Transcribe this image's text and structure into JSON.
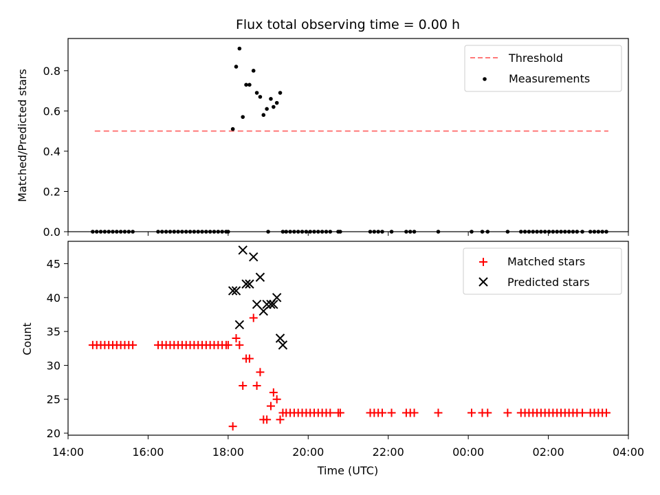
{
  "chart_data": [
    {
      "type": "scatter",
      "title": "Flux total observing time = 0.00 h",
      "xlabel": "",
      "ylabel": "Matched/Predicted stars",
      "xlim": [
        "14:00",
        "04:00"
      ],
      "ylim": [
        0.0,
        0.96
      ],
      "yticks": [
        0.0,
        0.2,
        0.4,
        0.6,
        0.8
      ],
      "yticklabels": [
        "0.0",
        "0.2",
        "0.4",
        "0.6",
        "0.8"
      ],
      "legend_position": "top-right",
      "grid": false,
      "lines": [
        {
          "name": "Threshold",
          "color": "#ff7777",
          "dash": "dashed",
          "x": [
            "14:40",
            "03:30"
          ],
          "y": [
            0.5,
            0.5
          ]
        }
      ],
      "series": [
        {
          "name": "Measurements",
          "color": "#000000",
          "marker": "dot",
          "x": [
            "18:07",
            "18:12",
            "18:17",
            "18:22",
            "18:27",
            "18:32",
            "18:38",
            "18:43",
            "18:48",
            "18:53",
            "18:58",
            "19:04",
            "19:08",
            "19:13",
            "19:18",
            "19:22"
          ],
          "y": [
            0.51,
            0.82,
            0.91,
            0.57,
            0.73,
            0.73,
            0.8,
            0.69,
            0.67,
            0.58,
            0.61,
            0.66,
            0.62,
            0.64,
            0.69,
            0.0
          ]
        },
        {
          "name": "",
          "color": "#000000",
          "marker": "dot",
          "x": [
            "14:37",
            "14:43",
            "14:49",
            "14:55",
            "15:01",
            "15:07",
            "15:13",
            "15:19",
            "15:25",
            "15:31",
            "15:37",
            "16:15",
            "16:21",
            "16:27",
            "16:33",
            "16:39",
            "16:45",
            "16:51",
            "16:57",
            "17:03",
            "17:09",
            "17:15",
            "17:21",
            "17:27",
            "17:33",
            "17:39",
            "17:45",
            "17:51",
            "17:57",
            "18:00",
            "19:00",
            "19:27",
            "19:33",
            "19:39",
            "19:45",
            "19:51",
            "19:57",
            "20:03",
            "20:09",
            "20:15",
            "20:21",
            "20:27",
            "20:33",
            "20:45",
            "20:48",
            "21:33",
            "21:39",
            "21:45",
            "21:51",
            "22:05",
            "22:27",
            "22:33",
            "22:39",
            "23:15",
            "00:05",
            "00:21",
            "00:29",
            "00:59",
            "01:19",
            "01:25",
            "01:31",
            "01:37",
            "01:43",
            "01:49",
            "01:55",
            "02:01",
            "02:07",
            "02:13",
            "02:19",
            "02:25",
            "02:31",
            "02:37",
            "02:43",
            "02:51",
            "03:03",
            "03:09",
            "03:15",
            "03:21",
            "03:27"
          ],
          "y": [
            0,
            0,
            0,
            0,
            0,
            0,
            0,
            0,
            0,
            0,
            0,
            0,
            0,
            0,
            0,
            0,
            0,
            0,
            0,
            0,
            0,
            0,
            0,
            0,
            0,
            0,
            0,
            0,
            0,
            0,
            0,
            0,
            0,
            0,
            0,
            0,
            0,
            0,
            0,
            0,
            0,
            0,
            0,
            0,
            0,
            0,
            0,
            0,
            0,
            0,
            0,
            0,
            0,
            0,
            0,
            0,
            0,
            0,
            0,
            0,
            0,
            0,
            0,
            0,
            0,
            0,
            0,
            0,
            0,
            0,
            0,
            0,
            0,
            0,
            0,
            0,
            0,
            0,
            0
          ]
        }
      ]
    },
    {
      "type": "scatter",
      "title": "",
      "xlabel": "Time (UTC)",
      "ylabel": "Count",
      "xlim": [
        "14:00",
        "04:00"
      ],
      "ylim": [
        19.7,
        48.3
      ],
      "yticks": [
        20,
        25,
        30,
        35,
        40,
        45
      ],
      "yticklabels": [
        "20",
        "25",
        "30",
        "35",
        "40",
        "45"
      ],
      "xticks": [
        "14:00",
        "16:00",
        "18:00",
        "20:00",
        "22:00",
        "00:00",
        "02:00",
        "04:00"
      ],
      "legend_position": "top-right",
      "grid": false,
      "series": [
        {
          "name": "Matched stars",
          "color": "#ff0000",
          "marker": "plus",
          "x": [
            "14:37",
            "14:43",
            "14:49",
            "14:55",
            "15:01",
            "15:07",
            "15:13",
            "15:19",
            "15:25",
            "15:31",
            "15:37",
            "16:15",
            "16:21",
            "16:27",
            "16:33",
            "16:39",
            "16:45",
            "16:51",
            "16:57",
            "17:03",
            "17:09",
            "17:15",
            "17:21",
            "17:27",
            "17:33",
            "17:39",
            "17:45",
            "17:51",
            "17:57",
            "18:00",
            "18:07",
            "18:12",
            "18:17",
            "18:22",
            "18:27",
            "18:32",
            "18:38",
            "18:43",
            "18:48",
            "18:53",
            "18:58",
            "19:04",
            "19:08",
            "19:13",
            "19:18",
            "19:22",
            "19:27",
            "19:33",
            "19:39",
            "19:45",
            "19:51",
            "19:57",
            "20:03",
            "20:09",
            "20:15",
            "20:21",
            "20:27",
            "20:33",
            "20:45",
            "20:48",
            "21:33",
            "21:39",
            "21:45",
            "21:51",
            "22:05",
            "22:27",
            "22:33",
            "22:39",
            "23:15",
            "00:05",
            "00:21",
            "00:29",
            "00:59",
            "01:19",
            "01:25",
            "01:31",
            "01:37",
            "01:43",
            "01:49",
            "01:55",
            "02:01",
            "02:07",
            "02:13",
            "02:19",
            "02:25",
            "02:31",
            "02:37",
            "02:43",
            "02:51",
            "03:03",
            "03:09",
            "03:15",
            "03:21",
            "03:27"
          ],
          "y": [
            33,
            33,
            33,
            33,
            33,
            33,
            33,
            33,
            33,
            33,
            33,
            33,
            33,
            33,
            33,
            33,
            33,
            33,
            33,
            33,
            33,
            33,
            33,
            33,
            33,
            33,
            33,
            33,
            33,
            33,
            21,
            34,
            33,
            27,
            31,
            31,
            37,
            27,
            29,
            22,
            22,
            24,
            26,
            25,
            22,
            23,
            23,
            23,
            23,
            23,
            23,
            23,
            23,
            23,
            23,
            23,
            23,
            23,
            23,
            23,
            23,
            23,
            23,
            23,
            23,
            23,
            23,
            23,
            23,
            23,
            23,
            23,
            23,
            23,
            23,
            23,
            23,
            23,
            23,
            23,
            23,
            23,
            23,
            23,
            23,
            23,
            23,
            23,
            23,
            23,
            23,
            23,
            23,
            23
          ]
        },
        {
          "name": "Predicted stars",
          "color": "#000000",
          "marker": "x",
          "x": [
            "18:07",
            "18:12",
            "18:17",
            "18:22",
            "18:27",
            "18:32",
            "18:38",
            "18:43",
            "18:48",
            "18:53",
            "18:58",
            "19:04",
            "19:08",
            "19:13",
            "19:18",
            "19:22"
          ],
          "y": [
            41,
            41,
            36,
            47,
            42,
            42,
            46,
            39,
            43,
            38,
            39,
            39,
            39,
            40,
            34,
            33
          ]
        }
      ]
    }
  ]
}
